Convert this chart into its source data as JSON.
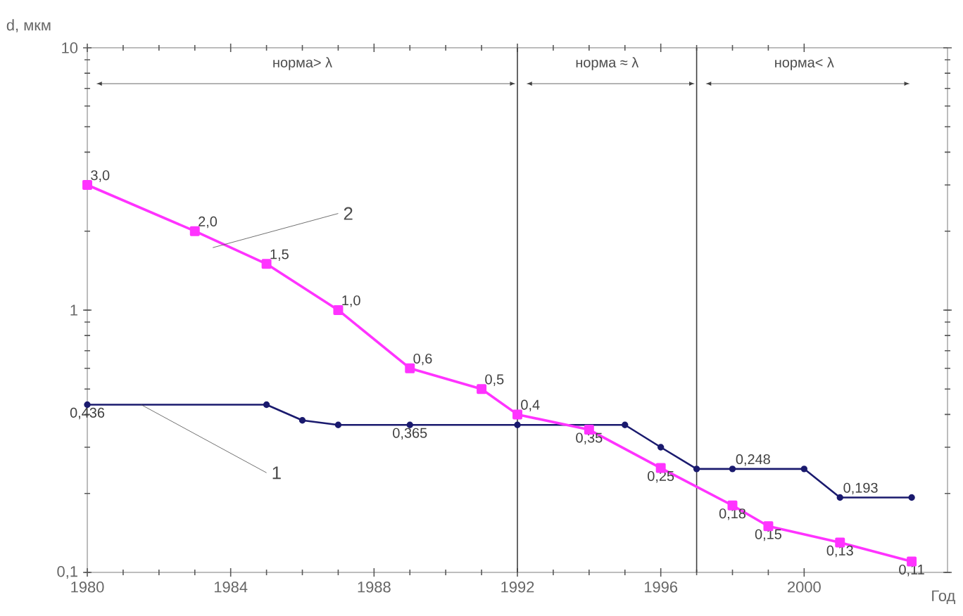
{
  "chart_data": {
    "type": "line",
    "xlabel": "Год",
    "ylabel": "d, мкм",
    "log": "y",
    "xlim": [
      1980,
      2004
    ],
    "ylim": [
      0.1,
      10
    ],
    "xticks": [
      1980,
      1984,
      1988,
      1992,
      1996,
      2000
    ],
    "yticks": [
      {
        "value": 0.1,
        "label": "0,1"
      },
      {
        "value": 1,
        "label": "1"
      },
      {
        "value": 10,
        "label": "10"
      }
    ],
    "series": [
      {
        "color": "#1a1a6e",
        "marker": "circle",
        "x": [
          1980,
          1985,
          1986,
          1987,
          1989,
          1992,
          1995,
          1996,
          1997,
          1998,
          2000,
          2001,
          2003
        ],
        "values": [
          0.436,
          0.436,
          0.38,
          0.365,
          0.365,
          0.365,
          0.365,
          0.3,
          0.248,
          0.248,
          0.248,
          0.193,
          0.193
        ],
        "value_labels": [
          "0,436",
          null,
          null,
          null,
          "0,365",
          null,
          null,
          null,
          null,
          "0,248",
          null,
          "0,193",
          null
        ]
      },
      {
        "color": "#ff33ff",
        "marker": "square",
        "x": [
          1980,
          1983,
          1985,
          1987,
          1989,
          1991,
          1992,
          1994,
          1996,
          1998,
          1999,
          2001,
          2003
        ],
        "values": [
          3.0,
          2.0,
          1.5,
          1.0,
          0.6,
          0.5,
          0.4,
          0.35,
          0.25,
          0.18,
          0.15,
          0.13,
          0.11
        ],
        "value_labels": [
          "3,0",
          "2,0",
          "1,5",
          "1,0",
          "0,6",
          "0,5",
          "0,4",
          "0,35",
          "0,25",
          "0,18",
          "0,15",
          "0,13",
          "0,11"
        ]
      }
    ],
    "ref_lines": [
      {
        "axis": "x",
        "value": 1992
      },
      {
        "axis": "x",
        "value": 1997
      }
    ],
    "annotations": [
      "норма> λ",
      "норма ≈ λ",
      "норма< λ",
      {
        "text": "1",
        "x": 1981.5,
        "y": 0.436
      },
      {
        "text": "2",
        "x": 1983.5,
        "y": 1.73
      }
    ],
    "grid": false
  }
}
